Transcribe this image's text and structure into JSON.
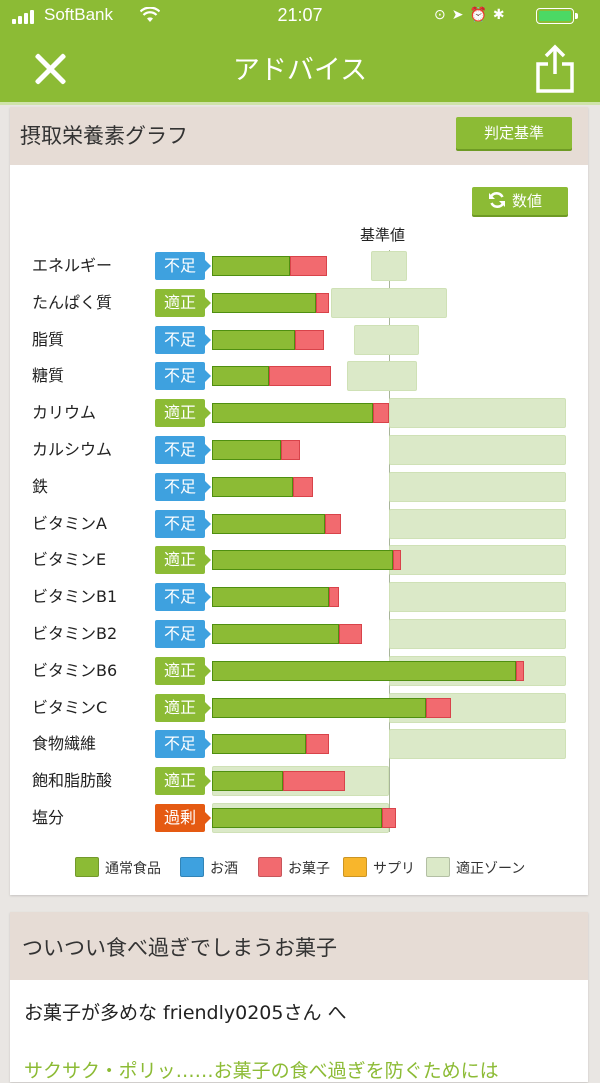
{
  "status_bar": {
    "carrier": "SoftBank",
    "time": "21:07",
    "battery_color": "#4cd964"
  },
  "nav": {
    "title": "アドバイス",
    "close_icon": "close-icon",
    "share_icon": "share-icon"
  },
  "section1": {
    "title": "摂取栄養素グラフ",
    "criteria_button": "判定基準",
    "value_button": "数値",
    "reference_label": "基準値"
  },
  "status_labels": {
    "low": "不足",
    "ok": "適正",
    "high": "過剰"
  },
  "chart_data": {
    "type": "bar",
    "categories": [
      "エネルギー",
      "たんぱく質",
      "脂質",
      "糖質",
      "カリウム",
      "カルシウム",
      "鉄",
      "ビタミンA",
      "ビタミンE",
      "ビタミンB1",
      "ビタミンB2",
      "ビタミンB6",
      "ビタミンC",
      "食物繊維",
      "飽和脂肪酸",
      "塩分"
    ],
    "status": [
      "不足",
      "適正",
      "不足",
      "不足",
      "適正",
      "不足",
      "不足",
      "不足",
      "適正",
      "不足",
      "不足",
      "適正",
      "適正",
      "不足",
      "適正",
      "過剰"
    ],
    "series": [
      {
        "name": "通常食品",
        "color": "#8cbb35",
        "values": [
          0.44,
          0.59,
          0.47,
          0.32,
          0.91,
          0.39,
          0.46,
          0.64,
          1.02,
          0.66,
          0.72,
          1.72,
          1.21,
          0.53,
          0.4,
          0.96
        ]
      },
      {
        "name": "お酒",
        "color": "#3ea1df",
        "values": [
          0,
          0,
          0,
          0,
          0,
          0,
          0,
          0,
          0,
          0,
          0,
          0,
          0,
          0,
          0,
          0
        ]
      },
      {
        "name": "お菓子",
        "color": "#f26a6f",
        "values": [
          0.21,
          0.07,
          0.16,
          0.35,
          0.09,
          0.11,
          0.11,
          0.09,
          0.05,
          0.06,
          0.13,
          0.04,
          0.14,
          0.13,
          0.35,
          0.08
        ]
      },
      {
        "name": "サプリ",
        "color": "#f8b62c",
        "values": [
          0,
          0,
          0,
          0,
          0,
          0,
          0,
          0,
          0,
          0,
          0,
          0,
          0,
          0,
          0,
          0
        ]
      }
    ],
    "appropriate_zone": {
      "name": "適正ゾーン",
      "color": "#dbe9c8",
      "ranges": [
        [
          0.9,
          1.1
        ],
        [
          0.67,
          1.33
        ],
        [
          0.8,
          1.17
        ],
        [
          0.76,
          1.16
        ],
        [
          1.0,
          2.0
        ],
        [
          1.0,
          2.0
        ],
        [
          1.0,
          2.0
        ],
        [
          1.0,
          2.0
        ],
        [
          1.0,
          2.0
        ],
        [
          1.0,
          2.0
        ],
        [
          1.0,
          2.0
        ],
        [
          1.0,
          2.0
        ],
        [
          1.0,
          2.0
        ],
        [
          1.0,
          2.0
        ],
        [
          0,
          1.0
        ],
        [
          0,
          1.0
        ]
      ]
    },
    "reference_value": 1.0,
    "xlim": [
      0,
      2.0
    ]
  },
  "section2": {
    "title": "ついつい食べ過ぎでしまうお菓子",
    "body": "お菓子が多めな friendly0205さん へ",
    "continuation": "サクサク・ポリッ……お菓子の食べ過ぎを防ぐためには"
  }
}
